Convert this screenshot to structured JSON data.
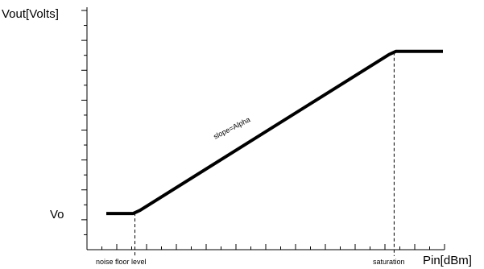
{
  "chart_data": {
    "type": "line",
    "ylabel": "Vout[Volts]",
    "xlabel": "Pin[dBm]",
    "y_tick_label": "Vo",
    "annotations": {
      "slope": "slope=Alpha",
      "noise_floor": "noise floor level",
      "saturation": "saturation"
    },
    "xlim": [
      0,
      100
    ],
    "ylim": [
      0,
      100
    ],
    "series": [
      {
        "x": [
          0,
          8,
          10,
          84,
          86,
          100
        ],
        "y": [
          8.5,
          8.5,
          10,
          85,
          86.5,
          86.5
        ]
      }
    ],
    "markers": {
      "noise_floor_x": 8.5,
      "saturation_x": 85.5
    },
    "x_minor_ticks": 24,
    "y_minor_ticks": 16,
    "colors": {
      "line": "#000000",
      "axis": "#000000"
    }
  }
}
